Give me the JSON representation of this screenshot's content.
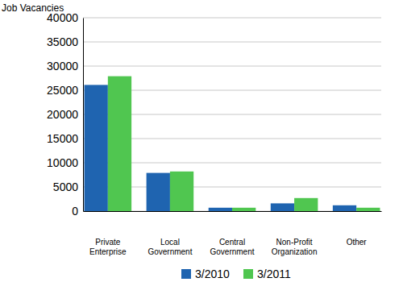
{
  "chart_data": {
    "type": "bar",
    "y_label": "Job Vacancies",
    "categories": [
      "Private Enterprise",
      "Local Government",
      "Central Government",
      "Non-Profit Organization",
      "Other"
    ],
    "series": [
      {
        "name": "3/2010",
        "color": "#1f64b0",
        "values": [
          26100,
          7900,
          700,
          1600,
          1200
        ]
      },
      {
        "name": "3/2011",
        "color": "#50c650",
        "values": [
          27900,
          8200,
          700,
          2700,
          700
        ]
      }
    ],
    "ylim": [
      0,
      40000
    ],
    "yticks": [
      0,
      5000,
      10000,
      15000,
      20000,
      25000,
      30000,
      35000,
      40000
    ],
    "grid": true,
    "legend": "bottom"
  }
}
